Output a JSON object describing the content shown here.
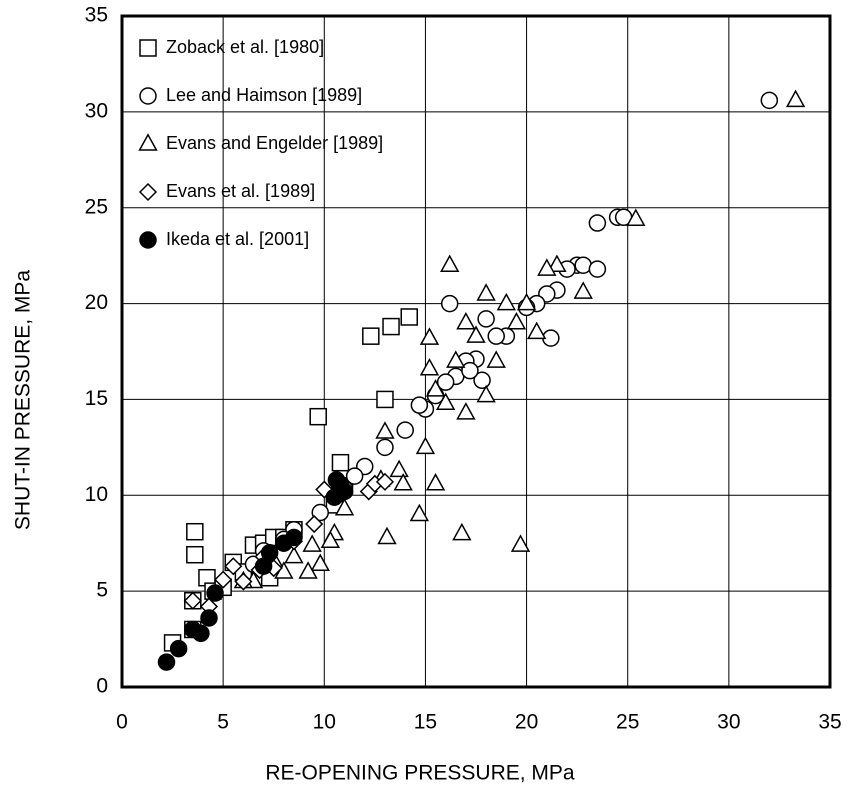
{
  "chart_data": {
    "type": "scatter",
    "xlabel": "RE-OPENING PRESSURE, MPa",
    "ylabel": "SHUT-IN PRESSURE, MPa",
    "xlim": [
      0,
      35
    ],
    "ylim": [
      0,
      35
    ],
    "xticks": [
      0,
      5,
      10,
      15,
      20,
      25,
      30,
      35
    ],
    "yticks": [
      0,
      5,
      10,
      15,
      20,
      25,
      30,
      35
    ],
    "grid": true,
    "legend": "upper left",
    "series": [
      {
        "name": "Zoback et al. [1980]",
        "marker": "square",
        "color": "#000000",
        "filled": false,
        "x": [
          2.5,
          3.5,
          3.5,
          3.6,
          3.6,
          4.2,
          4.5,
          5,
          5.5,
          6.5,
          7,
          7.5,
          7.3,
          8.5,
          9.7,
          10.5,
          10.8,
          11,
          12.3,
          13,
          13.3,
          14.2,
          8,
          6
        ],
        "y": [
          2.3,
          3.0,
          4.5,
          6.9,
          8.1,
          5.7,
          5.0,
          5.2,
          6.5,
          7.4,
          7.5,
          7.8,
          5.7,
          8.2,
          14.1,
          9.5,
          11.7,
          10.5,
          18.3,
          15,
          18.8,
          19.3,
          7.8,
          6
        ]
      },
      {
        "name": "Lee and Haimson [1989]",
        "marker": "circle",
        "color": "#000000",
        "filled": false,
        "x": [
          32,
          23.5,
          24.5,
          24.8,
          22.5,
          22.8,
          23.5,
          22,
          21.5,
          21,
          20.5,
          20,
          21.2,
          19,
          18.5,
          18,
          17.5,
          17,
          16.2,
          16.5,
          16,
          15.5,
          15,
          14.7,
          14,
          13,
          12,
          11.5,
          10.5,
          9.8,
          8.5,
          8,
          7,
          6.5,
          17.8,
          17.2
        ],
        "y": [
          30.6,
          24.2,
          24.5,
          24.5,
          22,
          22,
          21.8,
          21.8,
          20.7,
          20.5,
          20,
          19.8,
          18.2,
          18.3,
          18.3,
          19.2,
          17.1,
          17,
          20,
          16.2,
          15.9,
          15.2,
          14.5,
          14.7,
          13.4,
          12.5,
          11.5,
          11,
          10,
          9.1,
          8.2,
          7.7,
          7.1,
          6.4,
          16,
          16.5
        ]
      },
      {
        "name": "Evans and Engelder [1989]",
        "marker": "triangle",
        "color": "#000000",
        "filled": false,
        "x": [
          33.3,
          25.4,
          22.8,
          21.5,
          21,
          20.5,
          20,
          19.5,
          19,
          18,
          18,
          17.5,
          17,
          17,
          16.2,
          16.5,
          15.2,
          15.2,
          15.5,
          15,
          15.5,
          14.7,
          16.8,
          19.7,
          13.1,
          13,
          13.7,
          13.9,
          12.8,
          11,
          10.5,
          10.3,
          9.8,
          9.2,
          9.4,
          8.5,
          8,
          7.5,
          6.5,
          6,
          18.5,
          16
        ],
        "y": [
          30.6,
          24.4,
          20.6,
          22,
          21.8,
          18.5,
          20,
          19,
          20,
          20.5,
          15.2,
          18.3,
          19,
          14.3,
          22,
          17,
          18.2,
          16.6,
          15.5,
          12.5,
          10.6,
          9,
          8,
          7.4,
          7.8,
          13.3,
          11.3,
          10.6,
          10.8,
          9.3,
          8,
          7.6,
          6.4,
          6,
          7.4,
          6.8,
          6,
          6.6,
          5.5,
          5.5,
          17,
          14.8
        ]
      },
      {
        "name": "Evans et al. [1989]",
        "marker": "diamond",
        "color": "#000000",
        "filled": false,
        "x": [
          3.5,
          4.3,
          5,
          5.5,
          6,
          6.8,
          7.5,
          8.5,
          10,
          11,
          12.2,
          12.5,
          13,
          9.5,
          7
        ],
        "y": [
          4.5,
          4.2,
          5.6,
          6.3,
          5.5,
          6.1,
          6.2,
          7.6,
          10.3,
          10.5,
          10.2,
          10.6,
          10.7,
          8.5,
          6.8
        ]
      },
      {
        "name": "Ikeda et al. [2001]",
        "marker": "circle",
        "color": "#000000",
        "filled": true,
        "x": [
          2.2,
          2.8,
          3.5,
          3.9,
          4.3,
          4.6,
          7,
          7.3,
          8,
          8.5,
          10.5,
          10.8,
          11,
          10.6
        ],
        "y": [
          1.3,
          2,
          3,
          2.8,
          3.6,
          4.9,
          6.3,
          7,
          7.5,
          7.8,
          9.9,
          10.5,
          10.2,
          10.8
        ]
      }
    ]
  }
}
